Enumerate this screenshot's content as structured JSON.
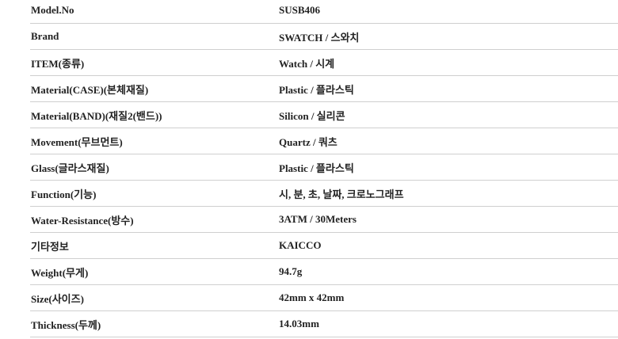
{
  "spec_table": {
    "rows": [
      {
        "label": "Model.No",
        "value": "SUSB406"
      },
      {
        "label": "Brand",
        "value": "SWATCH / 스와치"
      },
      {
        "label": "ITEM(종류)",
        "value": "Watch / 시계"
      },
      {
        "label": "Material(CASE)(본체재질)",
        "value": "Plastic / 플라스틱"
      },
      {
        "label": "Material(BAND)(재질2(밴드))",
        "value": "Silicon / 실리콘"
      },
      {
        "label": "Movement(무브먼트)",
        "value": "Quartz / 쿼츠"
      },
      {
        "label": "Glass(글라스재질)",
        "value": "Plastic / 플라스틱"
      },
      {
        "label": "Function(기능)",
        "value": "시, 분, 초, 날짜, 크로노그래프"
      },
      {
        "label": "Water-Resistance(방수)",
        "value": "3ATM / 30Meters"
      },
      {
        "label": "기타정보",
        "value": "KAICCO"
      },
      {
        "label": "Weight(무게)",
        "value": "94.7g"
      },
      {
        "label": "Size(사이즈)",
        "value": "42mm x 42mm"
      },
      {
        "label": "Thickness(두께)",
        "value": "14.03mm"
      }
    ]
  }
}
